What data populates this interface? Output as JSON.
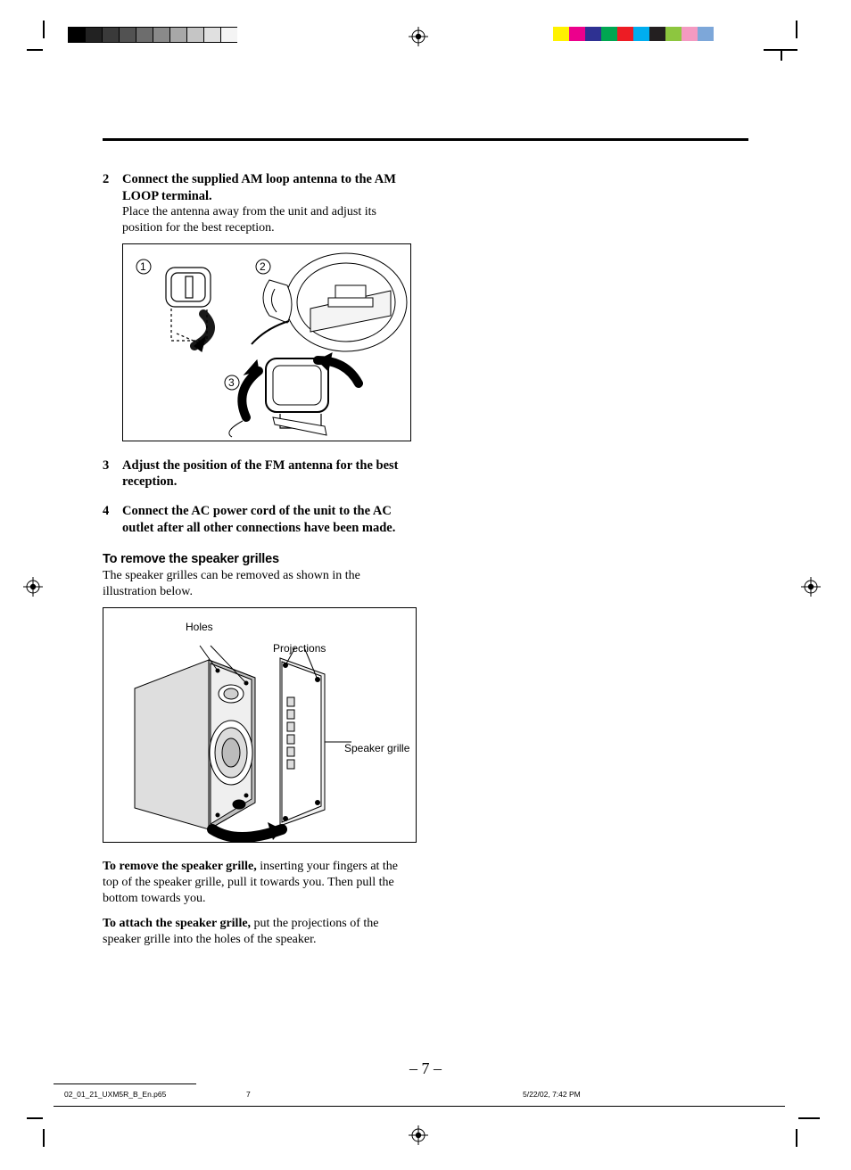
{
  "printer_marks": {
    "left_color_bar": [
      {
        "w": 18,
        "c": "#000000"
      },
      {
        "w": 18,
        "c": "#222222"
      },
      {
        "w": 18,
        "c": "#3a3a3a"
      },
      {
        "w": 18,
        "c": "#525252"
      },
      {
        "w": 18,
        "c": "#6d6d6d"
      },
      {
        "w": 18,
        "c": "#8a8a8a"
      },
      {
        "w": 18,
        "c": "#a8a8a8"
      },
      {
        "w": 18,
        "c": "#c5c5c5"
      },
      {
        "w": 18,
        "c": "#e0e0e0"
      },
      {
        "w": 18,
        "c": "#f4f4f4"
      }
    ],
    "right_color_bar": [
      {
        "w": 18,
        "c": "#fff200"
      },
      {
        "w": 18,
        "c": "#ec008c"
      },
      {
        "w": 18,
        "c": "#2e3192"
      },
      {
        "w": 18,
        "c": "#00a651"
      },
      {
        "w": 18,
        "c": "#ed1c24"
      },
      {
        "w": 18,
        "c": "#00aeef"
      },
      {
        "w": 18,
        "c": "#231f20"
      },
      {
        "w": 18,
        "c": "#8dc63f"
      },
      {
        "w": 18,
        "c": "#f49ac1"
      },
      {
        "w": 18,
        "c": "#7da7d9"
      }
    ]
  },
  "steps": [
    {
      "num": "2",
      "title": "Connect the supplied AM loop antenna to the AM LOOP terminal.",
      "desc": "Place the antenna away from the unit and adjust its position for the best reception."
    },
    {
      "num": "3",
      "title": "Adjust the position of the FM antenna for the best reception.",
      "desc": ""
    },
    {
      "num": "4",
      "title": "Connect the AC power cord of the unit to the AC outlet after all other connections have been made.",
      "desc": ""
    }
  ],
  "grilles": {
    "heading": "To remove the speaker grilles",
    "intro": "The speaker grilles can be removed as shown in the illustration below.",
    "label_holes": "Holes",
    "label_projections": "Projections",
    "label_grille": "Speaker grille",
    "remove_lead": "To remove the speaker grille,",
    "remove_rest": " inserting your fingers at the top of the speaker grille, pull it towards you. Then pull the bottom towards you.",
    "attach_lead": "To attach the speaker grille,",
    "attach_rest": " put the projections of the speaker grille into the holes of the speaker."
  },
  "fig1": {
    "c1": "1",
    "c2": "2",
    "c3": "3"
  },
  "page_number": "– 7 –",
  "footer": {
    "file": "02_01_21_UXM5R_B_En.p65",
    "page": "7",
    "date": "5/22/02, 7:42 PM"
  }
}
